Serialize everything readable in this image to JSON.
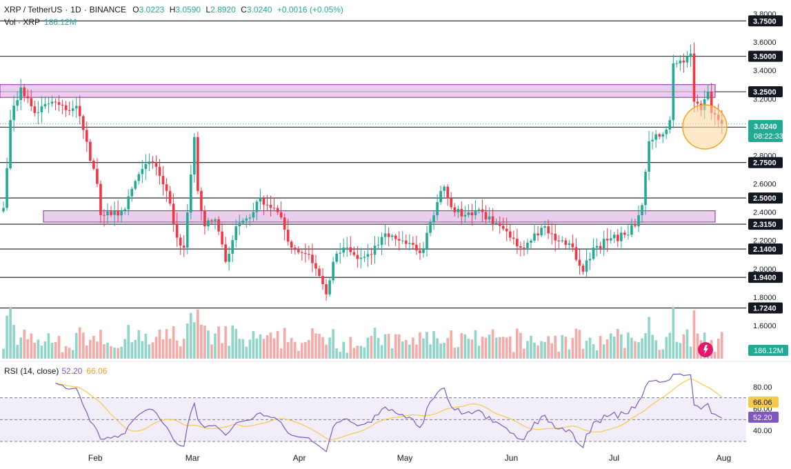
{
  "header": {
    "symbol": "XRP / TetherUS",
    "interval": "1D",
    "exchange": "BINANCE",
    "open_label": "O",
    "open": "3.0223",
    "high_label": "H",
    "high": "3.0590",
    "low_label": "L",
    "low": "2.8920",
    "close_label": "C",
    "close": "3.0240",
    "change": "+0.0016 (+0.05%)",
    "vol_label": "Vol · XRP",
    "vol_value": "186.12M"
  },
  "rsi": {
    "label": "RSI (14, close)",
    "value": "52.20",
    "ma_value": "66.06",
    "axis_ticks": [
      "80.00",
      "60.00",
      "40.00"
    ]
  },
  "colors": {
    "up": "#22ab94",
    "down": "#f23645",
    "up_vol": "#8fd6c9",
    "down_vol": "#f7a9a7",
    "zone_fill": "#e1bee7",
    "zone_stroke": "#8e24aa",
    "rsi_line": "#7e57c2",
    "rsi_ma": "#f7c948",
    "highlight_circle": "#f7a21b"
  },
  "chart_data": {
    "type": "candlestick",
    "title": "XRP / TetherUS · 1D · BINANCE",
    "ylim": [
      1.45,
      3.85
    ],
    "price_axis_ticks": [
      "3.8000",
      "3.6000",
      "3.4000",
      "3.2000",
      "2.8000",
      "2.6000",
      "2.4000",
      "2.2000",
      "2.0000",
      "1.8000",
      "1.6000"
    ],
    "x_ticks": [
      "Feb",
      "Mar",
      "Apr",
      "May",
      "Jun",
      "Jul",
      "Aug"
    ],
    "horizontal_levels": [
      3.75,
      3.5,
      3.25,
      3.0,
      2.75,
      2.5,
      2.315,
      2.14,
      1.94,
      1.724
    ],
    "horizontal_level_labels": [
      "3.7500",
      "3.5000",
      "3.2500",
      "3.0000",
      "2.7500",
      "2.5000",
      "2.3150",
      "2.1400",
      "1.9400",
      "1.7240"
    ],
    "zones": [
      {
        "from": 3.21,
        "to": 3.3
      },
      {
        "from": 2.33,
        "to": 2.41
      }
    ],
    "last_price": "3.0240",
    "countdown": "08:22:33",
    "volume_last": "186.12M",
    "series": [
      {
        "name": "XRP/USDT",
        "anchors": [
          [
            "2025-01-06",
            2.43
          ],
          [
            "2025-01-08",
            3.05
          ],
          [
            "2025-01-11",
            3.28
          ],
          [
            "2025-01-15",
            3.1
          ],
          [
            "2025-01-20",
            3.18
          ],
          [
            "2025-01-24",
            3.12
          ],
          [
            "2025-01-27",
            3.15
          ],
          [
            "2025-01-29",
            2.98
          ],
          [
            "2025-02-02",
            2.6
          ],
          [
            "2025-02-03",
            2.38
          ],
          [
            "2025-02-06",
            2.38
          ],
          [
            "2025-02-10",
            2.42
          ],
          [
            "2025-02-13",
            2.62
          ],
          [
            "2025-02-16",
            2.74
          ],
          [
            "2025-02-19",
            2.72
          ],
          [
            "2025-02-22",
            2.55
          ],
          [
            "2025-02-25",
            2.22
          ],
          [
            "2025-02-27",
            2.15
          ],
          [
            "2025-03-02",
            2.93
          ],
          [
            "2025-03-03",
            2.55
          ],
          [
            "2025-03-05",
            2.3
          ],
          [
            "2025-03-08",
            2.35
          ],
          [
            "2025-03-11",
            2.05
          ],
          [
            "2025-03-14",
            2.3
          ],
          [
            "2025-03-19",
            2.4
          ],
          [
            "2025-03-21",
            2.5
          ],
          [
            "2025-03-26",
            2.4
          ],
          [
            "2025-03-30",
            2.15
          ],
          [
            "2025-04-04",
            2.1
          ],
          [
            "2025-04-07",
            1.95
          ],
          [
            "2025-04-09",
            1.82
          ],
          [
            "2025-04-11",
            2.05
          ],
          [
            "2025-04-14",
            2.15
          ],
          [
            "2025-04-18",
            2.07
          ],
          [
            "2025-04-22",
            2.1
          ],
          [
            "2025-04-26",
            2.25
          ],
          [
            "2025-05-01",
            2.2
          ],
          [
            "2025-05-05",
            2.13
          ],
          [
            "2025-05-07",
            2.14
          ],
          [
            "2025-05-09",
            2.33
          ],
          [
            "2025-05-12",
            2.55
          ],
          [
            "2025-05-13",
            2.58
          ],
          [
            "2025-05-16",
            2.4
          ],
          [
            "2025-05-19",
            2.38
          ],
          [
            "2025-05-23",
            2.42
          ],
          [
            "2025-05-27",
            2.32
          ],
          [
            "2025-06-01",
            2.22
          ],
          [
            "2025-06-04",
            2.15
          ],
          [
            "2025-06-08",
            2.25
          ],
          [
            "2025-06-11",
            2.3
          ],
          [
            "2025-06-14",
            2.2
          ],
          [
            "2025-06-18",
            2.18
          ],
          [
            "2025-06-22",
            1.98
          ],
          [
            "2025-06-25",
            2.15
          ],
          [
            "2025-06-29",
            2.2
          ],
          [
            "2025-07-04",
            2.24
          ],
          [
            "2025-07-07",
            2.3
          ],
          [
            "2025-07-09",
            2.45
          ],
          [
            "2025-07-11",
            2.9
          ],
          [
            "2025-07-13",
            2.95
          ],
          [
            "2025-07-15",
            2.95
          ],
          [
            "2025-07-17",
            3.05
          ],
          [
            "2025-07-18",
            3.45
          ],
          [
            "2025-07-19",
            3.45
          ],
          [
            "2025-07-22",
            3.5
          ],
          [
            "2025-07-23",
            3.52
          ],
          [
            "2025-07-24",
            3.18
          ],
          [
            "2025-07-26",
            3.12
          ],
          [
            "2025-07-28",
            3.25
          ],
          [
            "2025-07-29",
            3.1
          ],
          [
            "2025-07-31",
            3.05
          ],
          [
            "2025-08-01",
            3.024
          ]
        ]
      }
    ]
  }
}
